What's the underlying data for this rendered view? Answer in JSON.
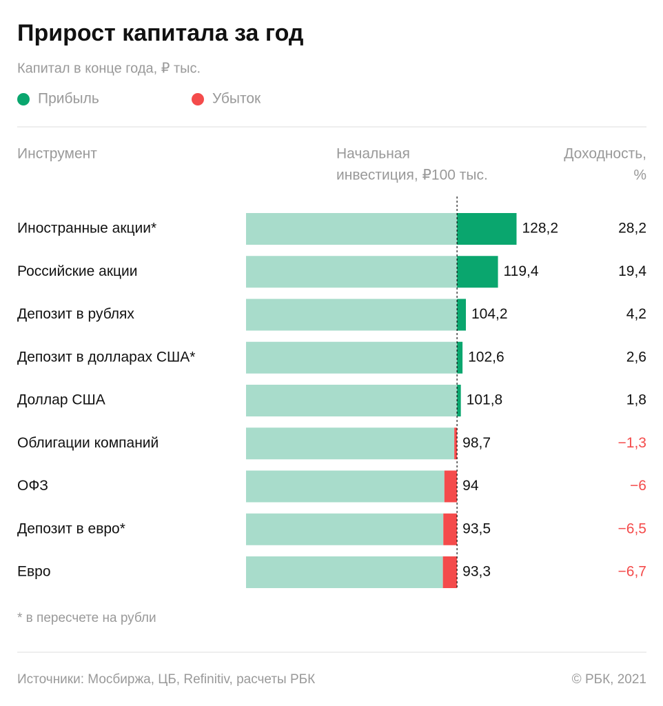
{
  "chart_data": {
    "type": "bar",
    "title": "Прирост капитала за год",
    "subtitle": "Капитал в конце года, ₽ тыс.",
    "legend": [
      {
        "name": "Прибыль",
        "color": "#0aa66e"
      },
      {
        "name": "Убыток",
        "color": "#f44b4b"
      }
    ],
    "column_headers": {
      "category": "Инструмент",
      "baseline": [
        "Начальная",
        "инвестиция, ₽100 тыс."
      ],
      "returns": [
        "Доходность,",
        "%"
      ]
    },
    "baseline": 100,
    "xlim": [
      0,
      130
    ],
    "base_color": "#a8dccb",
    "categories": [
      "Иностранные акции*",
      "Российские акции",
      "Депозит в рублях",
      "Депозит в долларах США*",
      "Доллар США",
      "Облигации компаний",
      "ОФЗ",
      "Депозит в евро*",
      "Евро"
    ],
    "values": [
      128.2,
      119.4,
      104.2,
      102.6,
      101.8,
      98.7,
      94,
      93.5,
      93.3
    ],
    "value_labels": [
      "128,2",
      "119,4",
      "104,2",
      "102,6",
      "101,8",
      "98,7",
      "94",
      "93,5",
      "93,3"
    ],
    "returns": [
      28.2,
      19.4,
      4.2,
      2.6,
      1.8,
      -1.3,
      -6,
      -6.5,
      -6.7
    ],
    "returns_labels": [
      "28,2",
      "19,4",
      "4,2",
      "2,6",
      "1,8",
      "−1,3",
      "−6",
      "−6,5",
      "−6,7"
    ],
    "footnote": "* в пересчете на рубли",
    "source": "Источники: Мосбиржа, ЦБ, Refinitiv, расчеты РБК",
    "copyright": "© РБК, 2021"
  }
}
